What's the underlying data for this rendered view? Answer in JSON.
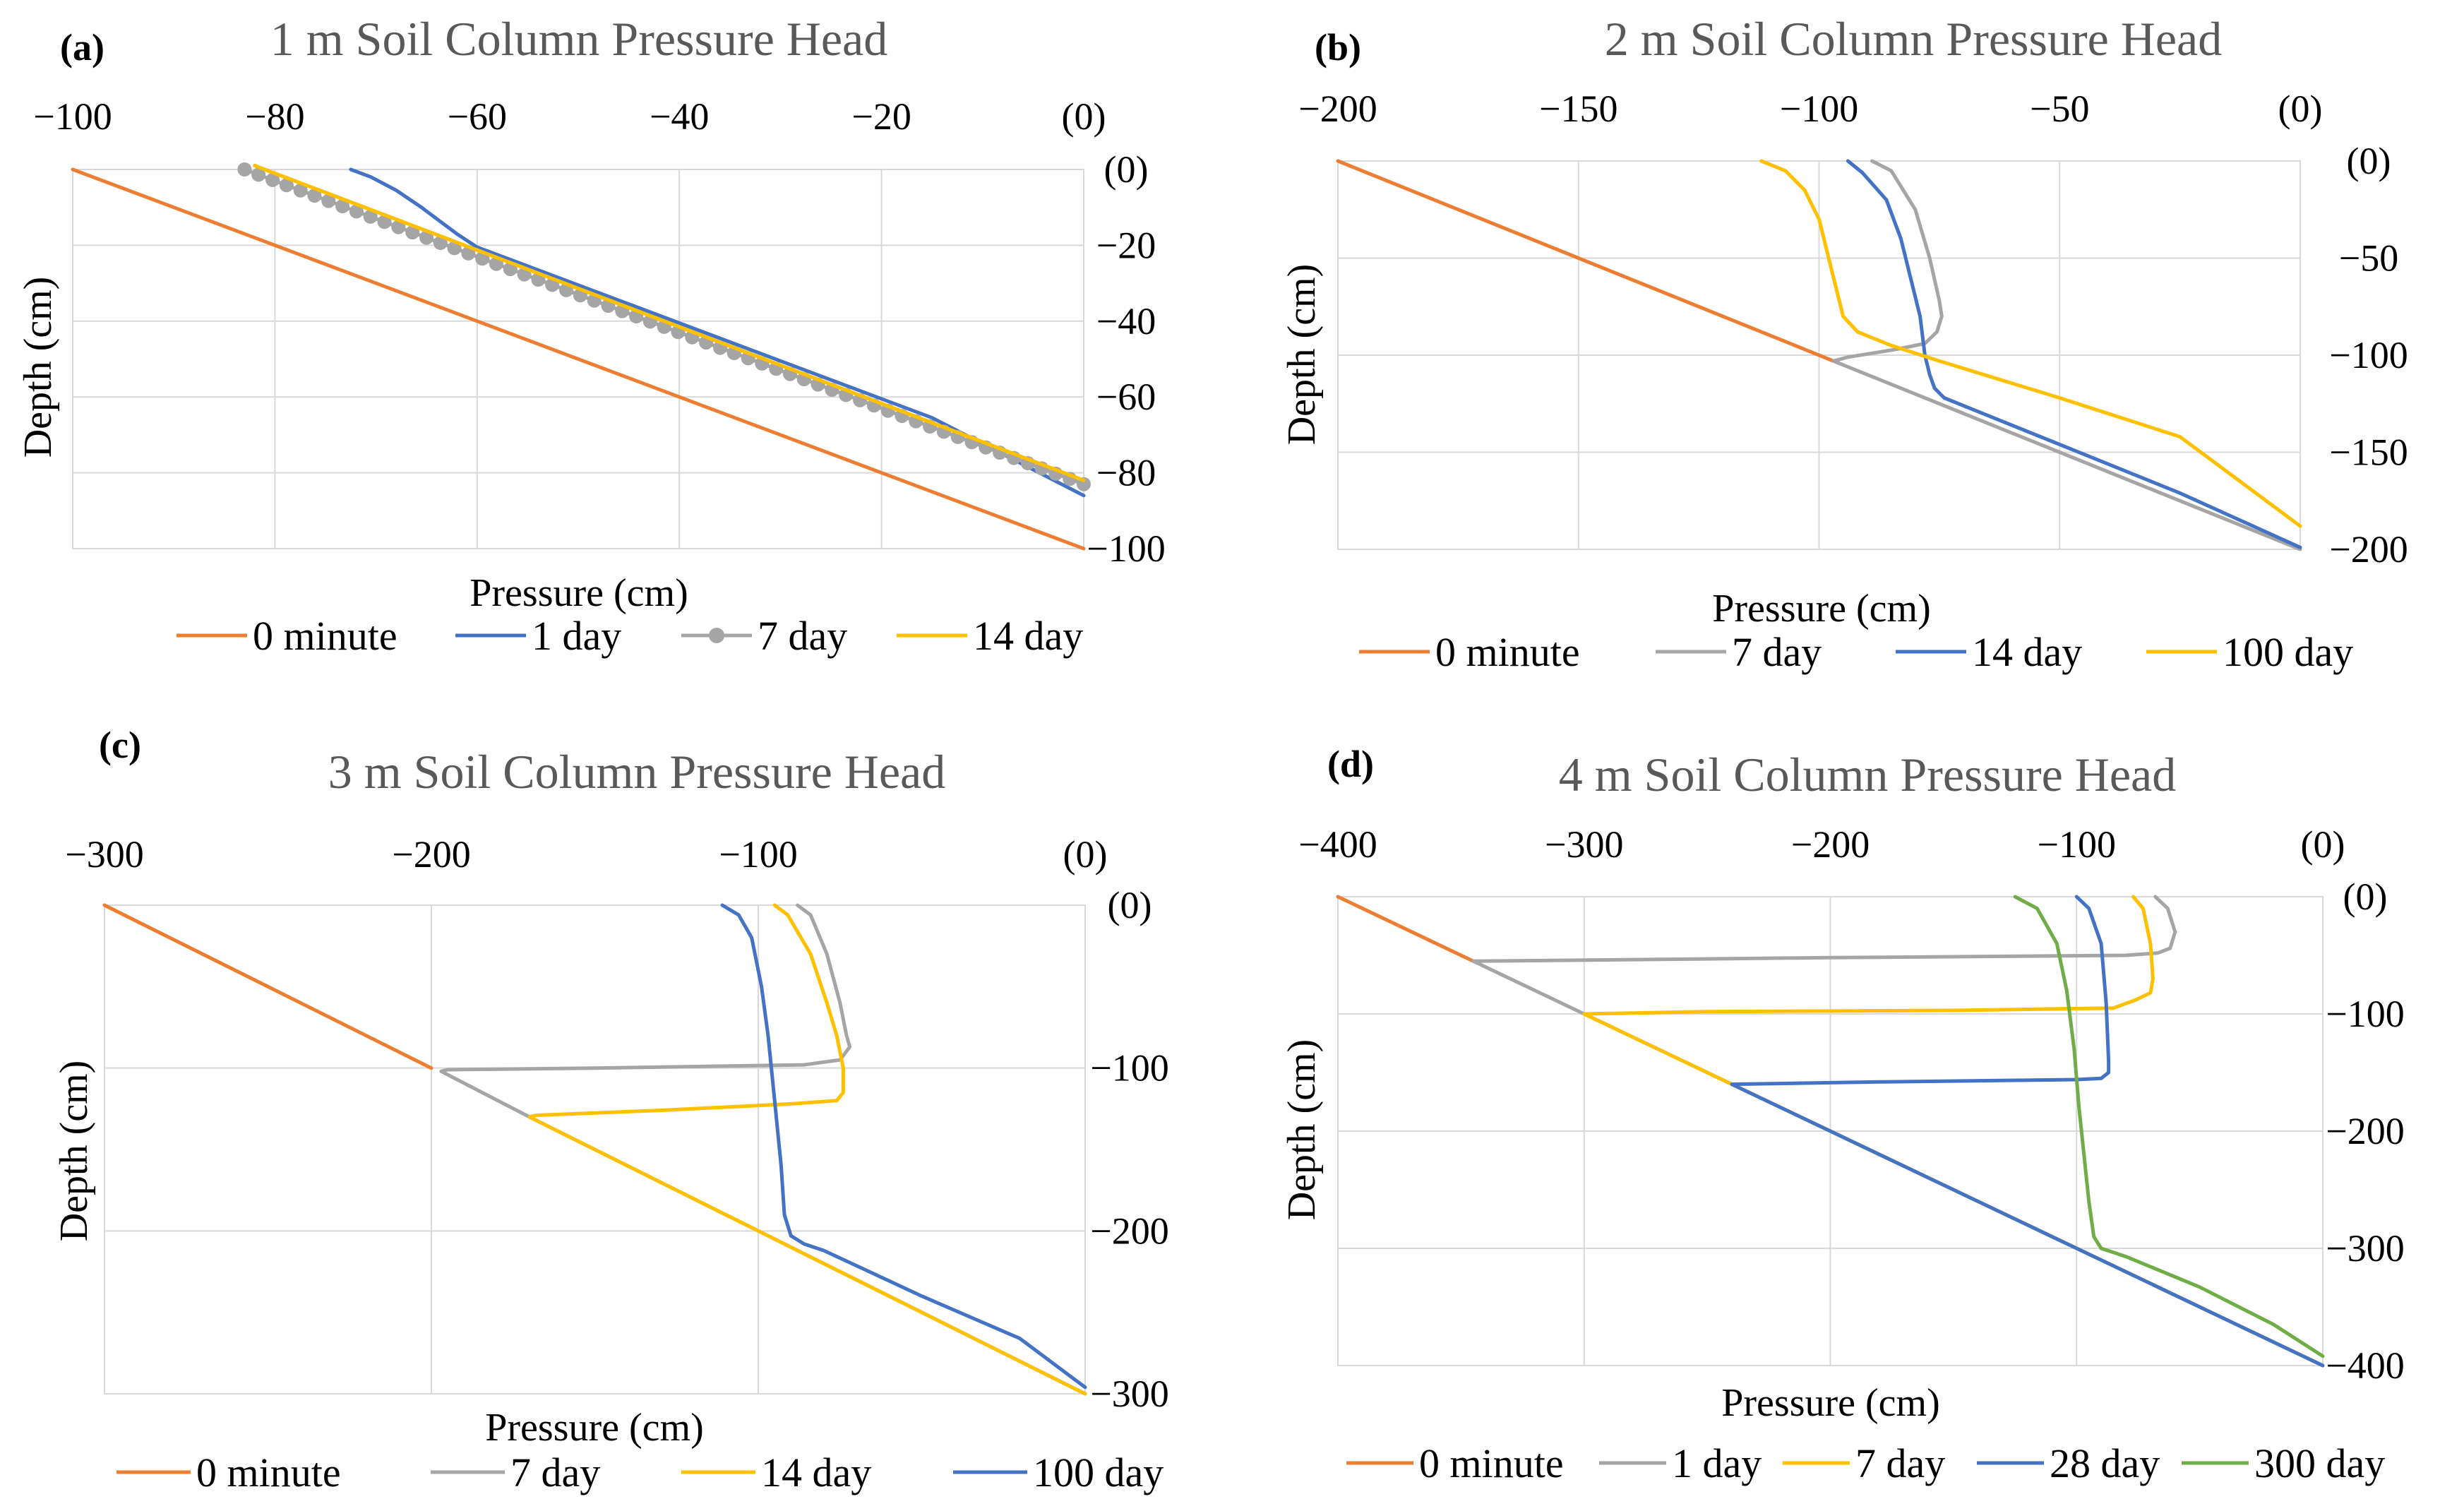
{
  "chart_data": [
    {
      "type": "line",
      "panel_label": "(a)",
      "title": "1 m Soil Column Pressure Head",
      "xlabel": "Pressure (cm)",
      "ylabel": "Depth (cm)",
      "xlim": [
        -100,
        0
      ],
      "ylim": [
        -100,
        0
      ],
      "x_ticks": [
        -100,
        -80,
        -60,
        -40,
        -20,
        0
      ],
      "x_tick_labels": [
        "−100",
        "−80",
        "−60",
        "−40",
        "−20",
        "(0)"
      ],
      "y_ticks": [
        0,
        -20,
        -40,
        -60,
        -80,
        -100
      ],
      "y_tick_labels": [
        "(0)",
        "−20",
        "−40",
        "−60",
        "−80",
        "−100"
      ],
      "x_grid_ticks": [
        -80,
        -60,
        -40,
        -20
      ],
      "y_grid_ticks": [
        -20,
        -40,
        -60,
        -80
      ],
      "legend_position": "bottom",
      "series": [
        {
          "name": "0 minute",
          "color": "#ED7D31",
          "points": [
            [
              -100,
              0
            ],
            [
              0,
              -100
            ]
          ]
        },
        {
          "name": "1 day",
          "color": "#4472C4",
          "points": [
            [
              -72.5,
              0
            ],
            [
              -70.5,
              -2
            ],
            [
              -68,
              -5.5
            ],
            [
              -65.5,
              -10
            ],
            [
              -63.5,
              -14
            ],
            [
              -62,
              -17
            ],
            [
              -60,
              -20.5
            ],
            [
              -55,
              -25.5
            ],
            [
              -45,
              -35.5
            ],
            [
              -30,
              -50.5
            ],
            [
              -15,
              -65.5
            ],
            [
              0,
              -86
            ]
          ]
        },
        {
          "name": "7 day",
          "color": "#A5A5A5",
          "marker": "circle",
          "points": [
            [
              -83,
              0
            ],
            [
              0,
              -83
            ]
          ]
        },
        {
          "name": "14 day",
          "color": "#FFC000",
          "points": [
            [
              -82,
              1
            ],
            [
              0,
              -82
            ]
          ]
        }
      ]
    },
    {
      "type": "line",
      "panel_label": "(b)",
      "title": "2 m Soil Column Pressure Head",
      "xlabel": "Pressure (cm)",
      "ylabel": "Depth (cm)",
      "xlim": [
        -200,
        0
      ],
      "ylim": [
        -200,
        0
      ],
      "x_ticks": [
        -200,
        -150,
        -100,
        -50,
        0
      ],
      "x_tick_labels": [
        "−200",
        "−150",
        "−100",
        "−50",
        "(0)"
      ],
      "y_ticks": [
        0,
        -50,
        -100,
        -150,
        -200
      ],
      "y_tick_labels": [
        "(0)",
        "−50",
        "−100",
        "−150",
        "−200"
      ],
      "x_grid_ticks": [
        -150,
        -100,
        -50
      ],
      "y_grid_ticks": [
        -50,
        -100,
        -150
      ],
      "legend_position": "bottom",
      "series": [
        {
          "name": "0 minute",
          "color": "#ED7D31",
          "points": [
            [
              -200,
              0
            ],
            [
              -97,
              -103
            ]
          ]
        },
        {
          "name": "7 day",
          "color": "#A5A5A5",
          "points": [
            [
              -89,
              0
            ],
            [
              -85,
              -5
            ],
            [
              -80,
              -25
            ],
            [
              -77,
              -50
            ],
            [
              -75,
              -72
            ],
            [
              -74.5,
              -80
            ],
            [
              -75.5,
              -88
            ],
            [
              -78,
              -94
            ],
            [
              -84,
              -97
            ],
            [
              -94,
              -101
            ],
            [
              -97,
              -103
            ],
            [
              -70,
              -130
            ],
            [
              -50,
              -150
            ],
            [
              0,
              -200
            ]
          ]
        },
        {
          "name": "14 day",
          "color": "#4472C4",
          "points": [
            [
              -94,
              0
            ],
            [
              -91,
              -6
            ],
            [
              -86,
              -20
            ],
            [
              -83,
              -40
            ],
            [
              -81,
              -60
            ],
            [
              -79,
              -80
            ],
            [
              -78,
              -100
            ],
            [
              -77,
              -110
            ],
            [
              -76,
              -117
            ],
            [
              -74,
              -122
            ],
            [
              -70,
              -126
            ],
            [
              -50,
              -146
            ],
            [
              -25,
              -171
            ],
            [
              0,
              -199
            ]
          ]
        },
        {
          "name": "100 day",
          "color": "#FFC000",
          "points": [
            [
              -112,
              0
            ],
            [
              -107,
              -5
            ],
            [
              -103,
              -15
            ],
            [
              -100,
              -30
            ],
            [
              -98,
              -50
            ],
            [
              -96,
              -70
            ],
            [
              -95,
              -80
            ],
            [
              -92,
              -88
            ],
            [
              -85,
              -95
            ],
            [
              -75,
              -103
            ],
            [
              -50,
              -122
            ],
            [
              -25,
              -142
            ],
            [
              0,
              -188
            ]
          ]
        }
      ]
    },
    {
      "type": "line",
      "panel_label": "(c)",
      "title": "3 m Soil Column Pressure Head",
      "xlabel": "Pressure (cm)",
      "ylabel": "Depth (cm)",
      "xlim": [
        -300,
        0
      ],
      "ylim": [
        -300,
        0
      ],
      "x_ticks": [
        -300,
        -200,
        -100,
        0
      ],
      "x_tick_labels": [
        "−300",
        "−200",
        "−100",
        "(0)"
      ],
      "y_ticks": [
        0,
        -100,
        -200,
        -300
      ],
      "y_tick_labels": [
        "(0)",
        "−100",
        "−200",
        "−300"
      ],
      "x_grid_ticks": [
        -200,
        -100
      ],
      "y_grid_ticks": [
        -100,
        -200
      ],
      "legend_position": "bottom",
      "series": [
        {
          "name": "0 minute",
          "color": "#ED7D31",
          "points": [
            [
              -300,
              0
            ],
            [
              -200,
              -100
            ]
          ]
        },
        {
          "name": "7 day",
          "color": "#A5A5A5",
          "points": [
            [
              -88,
              0
            ],
            [
              -84,
              -6
            ],
            [
              -79,
              -30
            ],
            [
              -75,
              -60
            ],
            [
              -73,
              -80
            ],
            [
              -72,
              -87
            ],
            [
              -75,
              -95
            ],
            [
              -86,
              -98
            ],
            [
              -150,
              -100
            ],
            [
              -195,
              -101
            ],
            [
              -197,
              -102
            ],
            [
              -170,
              -130
            ],
            [
              -100,
              -200
            ],
            [
              0,
              -300
            ]
          ]
        },
        {
          "name": "14 day",
          "color": "#FFC000",
          "points": [
            [
              -95,
              0
            ],
            [
              -91,
              -6
            ],
            [
              -84,
              -30
            ],
            [
              -79,
              -60
            ],
            [
              -76,
              -80
            ],
            [
              -74,
              -100
            ],
            [
              -74,
              -115
            ],
            [
              -76,
              -120
            ],
            [
              -90,
              -122
            ],
            [
              -130,
              -126
            ],
            [
              -168,
              -129
            ],
            [
              -170,
              -130
            ],
            [
              -100,
              -200
            ],
            [
              0,
              -300
            ]
          ]
        },
        {
          "name": "100 day",
          "color": "#4472C4",
          "points": [
            [
              -111,
              0
            ],
            [
              -106,
              -6
            ],
            [
              -102,
              -20
            ],
            [
              -99,
              -50
            ],
            [
              -97,
              -80
            ],
            [
              -95,
              -120
            ],
            [
              -93,
              -160
            ],
            [
              -92,
              -190
            ],
            [
              -90,
              -203
            ],
            [
              -86,
              -208
            ],
            [
              -80,
              -212
            ],
            [
              -50,
              -240
            ],
            [
              -20,
              -266
            ],
            [
              0,
              -296
            ]
          ]
        }
      ]
    },
    {
      "type": "line",
      "panel_label": "(d)",
      "title": "4 m Soil Column Pressure Head",
      "xlabel": "Pressure (cm)",
      "ylabel": "Depth (cm)",
      "xlim": [
        -400,
        0
      ],
      "ylim": [
        -400,
        0
      ],
      "x_ticks": [
        -400,
        -300,
        -200,
        -100,
        0
      ],
      "x_tick_labels": [
        "−400",
        "−300",
        "−200",
        "−100",
        "(0)"
      ],
      "y_ticks": [
        0,
        -100,
        -200,
        -300,
        -400
      ],
      "y_tick_labels": [
        "(0)",
        "−100",
        "−200",
        "−300",
        "−400"
      ],
      "x_grid_ticks": [
        -300,
        -200,
        -100
      ],
      "y_grid_ticks": [
        -100,
        -200,
        -300
      ],
      "legend_position": "bottom",
      "series": [
        {
          "name": "0 minute",
          "color": "#ED7D31",
          "points": [
            [
              -400,
              0
            ],
            [
              -345,
              -55
            ]
          ]
        },
        {
          "name": "1 day",
          "color": "#A5A5A5",
          "points": [
            [
              -68,
              0
            ],
            [
              -63,
              -10
            ],
            [
              -60,
              -30
            ],
            [
              -62,
              -44
            ],
            [
              -67,
              -48
            ],
            [
              -80,
              -50
            ],
            [
              -200,
              -52
            ],
            [
              -345,
              -55
            ],
            [
              -300,
              -100
            ],
            [
              -240,
              -160
            ],
            [
              -100,
              -300
            ],
            [
              0,
              -400
            ]
          ]
        },
        {
          "name": "7 day",
          "color": "#FFC000",
          "points": [
            [
              -77,
              0
            ],
            [
              -73,
              -10
            ],
            [
              -70,
              -40
            ],
            [
              -69,
              -70
            ],
            [
              -70,
              -82
            ],
            [
              -76,
              -88
            ],
            [
              -85,
              -95
            ],
            [
              -150,
              -97
            ],
            [
              -250,
              -98
            ],
            [
              -300,
              -100
            ],
            [
              -240,
              -160
            ],
            [
              -100,
              -300
            ],
            [
              0,
              -400
            ]
          ]
        },
        {
          "name": "28 day",
          "color": "#4472C4",
          "points": [
            [
              -100,
              0
            ],
            [
              -95,
              -10
            ],
            [
              -90,
              -40
            ],
            [
              -88,
              -90
            ],
            [
              -87,
              -140
            ],
            [
              -87,
              -150
            ],
            [
              -90,
              -155
            ],
            [
              -100,
              -156
            ],
            [
              -180,
              -158
            ],
            [
              -240,
              -160
            ],
            [
              -100,
              -300
            ],
            [
              0,
              -400
            ]
          ]
        },
        {
          "name": "300 day",
          "color": "#70AD47",
          "points": [
            [
              -125,
              0
            ],
            [
              -116,
              -10
            ],
            [
              -108,
              -40
            ],
            [
              -104,
              -80
            ],
            [
              -101,
              -130
            ],
            [
              -99,
              -180
            ],
            [
              -97,
              -220
            ],
            [
              -95,
              -260
            ],
            [
              -93,
              -290
            ],
            [
              -90,
              -300
            ],
            [
              -80,
              -307
            ],
            [
              -50,
              -333
            ],
            [
              -20,
              -365
            ],
            [
              0,
              -392
            ]
          ]
        }
      ]
    }
  ]
}
